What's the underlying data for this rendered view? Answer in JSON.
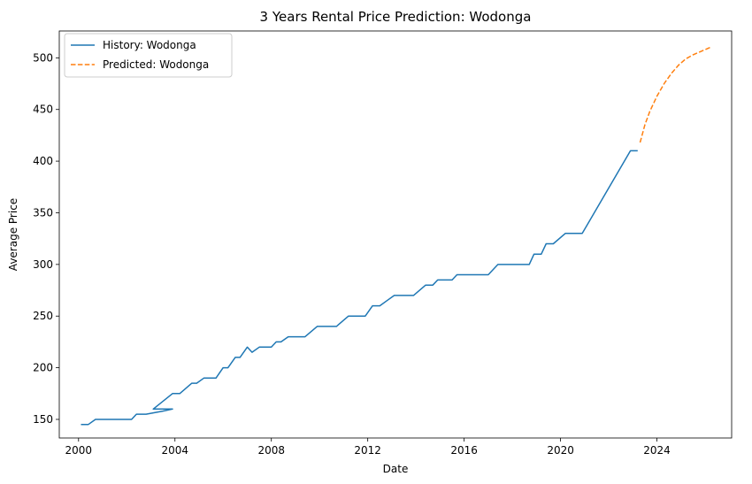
{
  "chart_data": {
    "type": "line",
    "title": "3 Years Rental Price Prediction: Wodonga",
    "xlabel": "Date",
    "ylabel": "Average Price",
    "xlim": [
      1999.2,
      2027.1
    ],
    "ylim": [
      132,
      526
    ],
    "x_ticks": [
      2000,
      2004,
      2008,
      2012,
      2016,
      2020,
      2024
    ],
    "y_ticks": [
      150,
      200,
      250,
      300,
      350,
      400,
      450,
      500
    ],
    "legend": "top-left",
    "grid": false,
    "series": [
      {
        "name": "History: Wodonga",
        "color": "#1f77b4",
        "style": "solid",
        "x": [
          2000.1,
          2000.4,
          2000.7,
          2001.0,
          2002.0,
          2002.2,
          2002.4,
          2002.8,
          2003.5,
          2003.9,
          2003.1,
          2003.9,
          2004.2,
          2004.7,
          2004.9,
          2005.2,
          2005.7,
          2006.0,
          2006.2,
          2006.5,
          2006.7,
          2007.0,
          2007.2,
          2007.5,
          2007.7,
          2008.0,
          2008.2,
          2008.4,
          2008.7,
          2009.0,
          2009.4,
          2009.9,
          2010.2,
          2010.7,
          2011.2,
          2011.9,
          2012.2,
          2012.5,
          2012.8,
          2013.1,
          2013.9,
          2014.4,
          2014.7,
          2014.9,
          2015.2,
          2015.5,
          2015.7,
          2016.2,
          2017.0,
          2017.4,
          2017.9,
          2018.7,
          2018.9,
          2019.2,
          2019.4,
          2019.7,
          2020.2,
          2020.9,
          2022.9,
          2023.2
        ],
        "y": [
          145,
          145,
          150,
          150,
          150,
          150,
          155,
          155,
          158,
          160,
          160,
          175,
          175,
          185,
          185,
          190,
          190,
          200,
          200,
          210,
          210,
          220,
          215,
          220,
          220,
          220,
          225,
          225,
          230,
          230,
          230,
          240,
          240,
          240,
          250,
          250,
          260,
          260,
          265,
          270,
          270,
          280,
          280,
          285,
          285,
          285,
          290,
          290,
          290,
          300,
          300,
          300,
          310,
          310,
          320,
          320,
          330,
          330,
          410,
          410
        ]
      },
      {
        "name": "Predicted: Wodonga",
        "color": "#ff7f0e",
        "style": "dashed",
        "x": [
          2023.3,
          2023.5,
          2023.7,
          2024.0,
          2024.3,
          2024.6,
          2024.9,
          2025.2,
          2025.5,
          2025.8,
          2026.2
        ],
        "y": [
          418,
          435,
          448,
          463,
          475,
          485,
          493,
          499,
          503,
          506,
          510
        ]
      }
    ]
  }
}
